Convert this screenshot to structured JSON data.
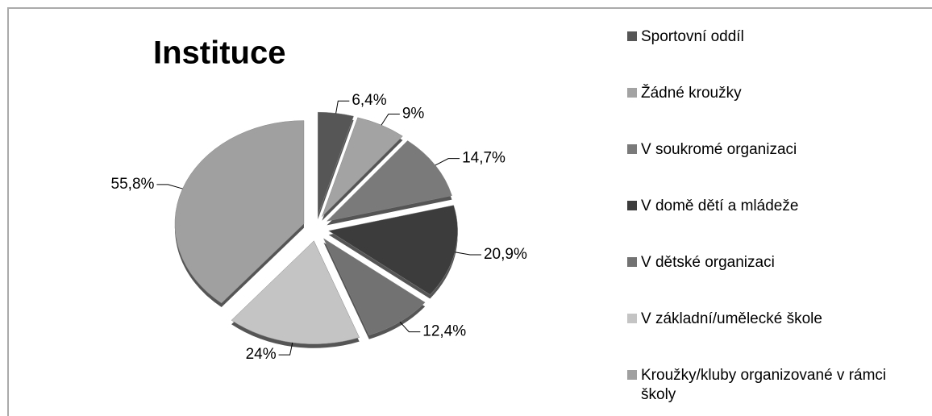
{
  "chart_data": {
    "type": "pie",
    "title": "Instituce",
    "categories": [
      "Sportovní oddíl",
      "Žádné kroužky",
      "V soukromé organizaci",
      "V domě dětí a mládeže",
      "V dětské organizaci",
      "V základní/umělecké škole",
      "Kroužky/kluby organizované v rámci školy"
    ],
    "values": [
      6.4,
      9,
      14.7,
      20.9,
      12.4,
      24,
      55.8
    ],
    "value_labels": [
      "6,4%",
      "9%",
      "14,7%",
      "20,9%",
      "12,4%",
      "24%",
      "55,8%"
    ],
    "colors": [
      "#565656",
      "#a3a3a3",
      "#7a7a7a",
      "#3c3c3c",
      "#727272",
      "#c4c4c4",
      "#a0a0a0"
    ]
  }
}
